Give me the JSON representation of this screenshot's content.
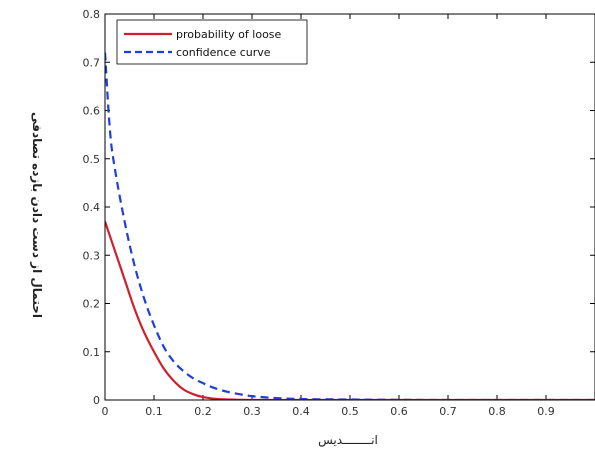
{
  "chart_data": {
    "type": "line",
    "title": "",
    "xlabel": "انــــــــديس",
    "ylabel": "احتمال از دست دادن  بازده تصادفی",
    "xlim": [
      0,
      1
    ],
    "ylim": [
      0,
      0.8
    ],
    "x_ticks": [
      0,
      0.1,
      0.2,
      0.3,
      0.4,
      0.5,
      0.6,
      0.7,
      0.8,
      0.9
    ],
    "x_tick_labels": [
      "0",
      "0.1",
      "0.2",
      "0.3",
      "0.4",
      "0.5",
      "0.6",
      "0.7",
      "0.8",
      "0.9"
    ],
    "y_ticks": [
      0,
      0.1,
      0.2,
      0.3,
      0.4,
      0.5,
      0.6,
      0.7,
      0.8
    ],
    "y_tick_labels": [
      "0",
      "0.1",
      "0.2",
      "0.3",
      "0.4",
      "0.5",
      "0.6",
      "0.7",
      "0.8"
    ],
    "grid": false,
    "legend_position": "top-left",
    "series": [
      {
        "name": "probability of loose",
        "color": "#d0202e",
        "style": "solid",
        "x": [
          0,
          0.02,
          0.04,
          0.06,
          0.08,
          0.1,
          0.12,
          0.14,
          0.16,
          0.18,
          0.2,
          0.22,
          0.25,
          0.3,
          0.4,
          0.5,
          0.7,
          1.0
        ],
        "y": [
          0.37,
          0.31,
          0.25,
          0.19,
          0.14,
          0.1,
          0.065,
          0.04,
          0.022,
          0.012,
          0.006,
          0.003,
          0.001,
          0,
          0,
          0,
          0,
          0
        ]
      },
      {
        "name": "confidence curve",
        "color": "#1f3fd8",
        "style": "dashed",
        "x": [
          0,
          0.01,
          0.02,
          0.04,
          0.06,
          0.08,
          0.1,
          0.12,
          0.14,
          0.16,
          0.18,
          0.2,
          0.22,
          0.25,
          0.3,
          0.35,
          0.4,
          0.5,
          0.7,
          1.0
        ],
        "y": [
          0.72,
          0.56,
          0.48,
          0.37,
          0.28,
          0.21,
          0.155,
          0.11,
          0.08,
          0.06,
          0.045,
          0.035,
          0.026,
          0.017,
          0.008,
          0.004,
          0.002,
          0.001,
          0,
          0
        ]
      }
    ]
  }
}
